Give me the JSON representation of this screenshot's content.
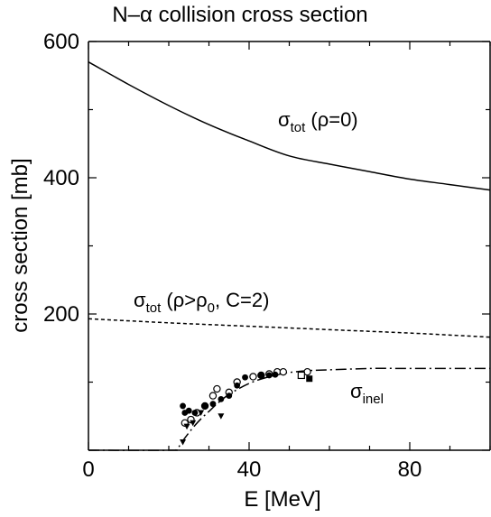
{
  "chart_data": {
    "type": "line",
    "title": "N–α collision cross section",
    "xlabel": "E [MeV]",
    "ylabel": "cross section [mb]",
    "xlim": [
      0,
      100
    ],
    "ylim": [
      0,
      600
    ],
    "xticks": [
      0,
      40,
      80
    ],
    "yticks": [
      200,
      400,
      600
    ],
    "xtick_labels": [
      "0",
      "40",
      "80"
    ],
    "ytick_labels": [
      "200",
      "400",
      "600"
    ],
    "grid": false,
    "legend": "none",
    "series": [
      {
        "name": "σ_tot (ρ=0)",
        "style": "solid",
        "x": [
          0,
          10,
          20,
          30,
          40,
          50,
          60,
          70,
          80,
          90,
          100
        ],
        "y": [
          570,
          537,
          506,
          478,
          454,
          432,
          420,
          409,
          398,
          390,
          382
        ]
      },
      {
        "name": "σ_tot (ρ>ρ0, C=2)",
        "style": "dashed",
        "x": [
          0,
          20,
          40,
          60,
          80,
          100
        ],
        "y": [
          193,
          187,
          182,
          177,
          172,
          166
        ]
      },
      {
        "name": "σ_inel",
        "style": "dash-dot",
        "x": [
          0,
          20,
          22,
          24,
          26,
          28,
          30,
          32,
          35,
          40,
          45,
          50,
          55,
          60,
          70,
          80,
          90,
          100
        ],
        "y": [
          0,
          0,
          2,
          18,
          33,
          46,
          57,
          68,
          82,
          98,
          108,
          114,
          117,
          118,
          120,
          120,
          120,
          120
        ]
      }
    ],
    "annotations": [
      {
        "text_main": "σ",
        "sub": "tot",
        "rest": " (ρ=0)"
      },
      {
        "text_main": "σ",
        "sub": "tot",
        "mid": " (ρ>ρ",
        "sub2": "0",
        "rest": ", C=2)"
      },
      {
        "text_main": "σ",
        "sub": "inel",
        "rest": ""
      }
    ],
    "points": {
      "open_circle": [
        [
          24,
          40
        ],
        [
          25.5,
          45
        ],
        [
          27,
          55
        ],
        [
          29,
          65
        ],
        [
          31,
          80
        ],
        [
          32,
          90
        ],
        [
          35,
          85
        ],
        [
          37,
          100
        ],
        [
          41,
          108
        ],
        [
          43,
          110
        ],
        [
          45,
          112
        ],
        [
          47,
          115
        ],
        [
          48.5,
          115
        ],
        [
          54.5,
          115
        ]
      ],
      "filled_circle": [
        [
          23.5,
          65
        ],
        [
          24,
          55
        ],
        [
          25,
          58
        ],
        [
          26.5,
          55
        ],
        [
          29,
          65
        ],
        [
          31,
          68
        ],
        [
          33,
          75
        ],
        [
          35,
          80
        ],
        [
          37,
          95
        ],
        [
          39,
          107
        ],
        [
          43,
          110
        ],
        [
          45,
          110
        ],
        [
          46.5,
          111
        ]
      ],
      "filled_triangle_down": [
        [
          23.5,
          12
        ],
        [
          24.5,
          35
        ],
        [
          26,
          40
        ],
        [
          28,
          55
        ],
        [
          33,
          50
        ]
      ],
      "open_square": [
        [
          53,
          110
        ]
      ],
      "filled_square": [
        [
          55,
          105
        ]
      ]
    }
  }
}
